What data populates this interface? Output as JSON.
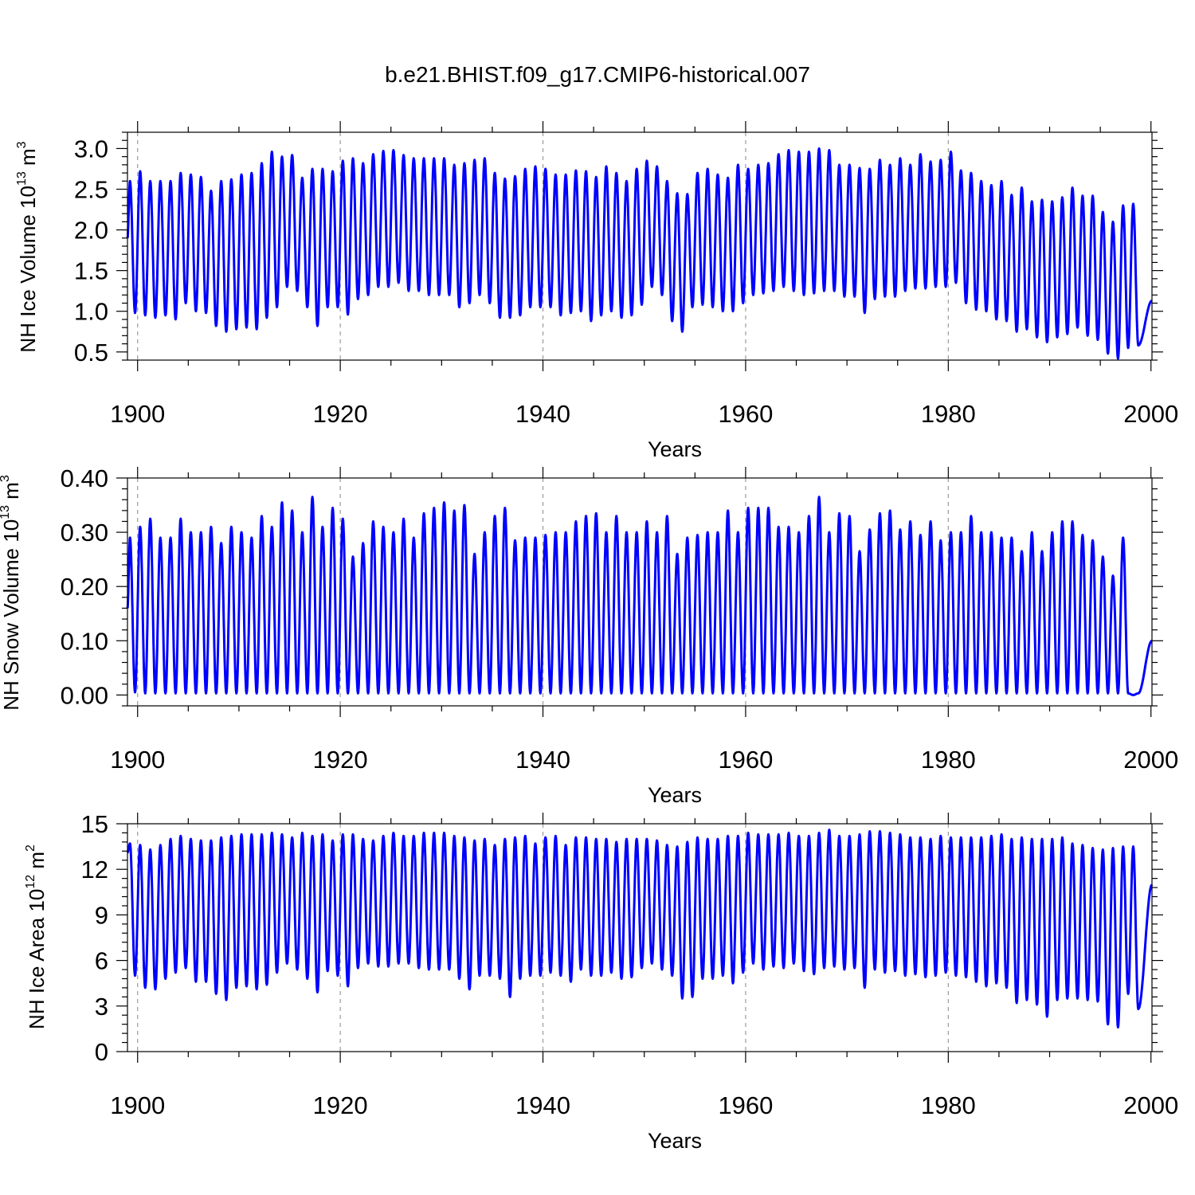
{
  "figure": {
    "title": "b.e21.BHIST.f09_g17.CMIP6-historical.007"
  },
  "chart_data": [
    {
      "type": "line",
      "id": "ice-volume",
      "ylabel": {
        "prefix": "NH Ice Volume 10",
        "exp1": "13",
        "middle": " m",
        "exp2": "3"
      },
      "xlabel": "Years",
      "xlim": [
        1899.0,
        2000.1
      ],
      "ylim": [
        0.4,
        3.2
      ],
      "x_ticks": [
        "1900",
        "1920",
        "1940",
        "1960",
        "1980",
        "2000"
      ],
      "y_ticks": [
        "0.5",
        "1.0",
        "1.5",
        "2.0",
        "2.5",
        "3.0"
      ],
      "grid": "vertical dashed at major x ticks",
      "series": [
        {
          "color": "#0000ff",
          "annual_max": [
            2.6,
            2.72,
            2.6,
            2.6,
            2.6,
            2.7,
            2.68,
            2.65,
            2.48,
            2.6,
            2.62,
            2.68,
            2.7,
            2.82,
            2.96,
            2.9,
            2.92,
            2.64,
            2.75,
            2.75,
            2.72,
            2.85,
            2.88,
            2.82,
            2.93,
            2.97,
            2.98,
            2.92,
            2.88,
            2.88,
            2.88,
            2.88,
            2.8,
            2.82,
            2.86,
            2.88,
            2.7,
            2.63,
            2.66,
            2.75,
            2.78,
            2.75,
            2.68,
            2.68,
            2.73,
            2.72,
            2.65,
            2.78,
            2.7,
            2.6,
            2.75,
            2.85,
            2.78,
            2.6,
            2.45,
            2.44,
            2.7,
            2.75,
            2.68,
            2.64,
            2.8,
            2.75,
            2.8,
            2.82,
            2.93,
            2.98,
            2.96,
            2.96,
            3.0,
            2.98,
            2.8,
            2.8,
            2.76,
            2.75,
            2.86,
            2.8,
            2.88,
            2.8,
            2.93,
            2.84,
            2.86,
            2.96,
            2.73,
            2.7,
            2.6,
            2.55,
            2.6,
            2.43,
            2.52,
            2.35,
            2.37,
            2.35,
            2.4,
            2.52,
            2.42,
            2.42,
            2.22,
            2.1,
            2.3,
            2.32
          ],
          "annual_min": [
            0.98,
            0.95,
            0.92,
            0.95,
            0.9,
            1.1,
            1.0,
            0.98,
            0.82,
            0.75,
            0.78,
            0.8,
            0.78,
            0.92,
            1.05,
            1.3,
            1.25,
            1.05,
            0.82,
            1.05,
            1.05,
            0.96,
            1.15,
            1.2,
            1.3,
            1.3,
            1.35,
            1.25,
            1.25,
            1.2,
            1.2,
            1.2,
            1.05,
            1.1,
            1.2,
            1.1,
            0.92,
            0.92,
            0.95,
            1.05,
            1.05,
            1.05,
            0.95,
            0.98,
            1.0,
            0.88,
            0.95,
            1.0,
            0.92,
            0.95,
            1.08,
            1.3,
            1.2,
            0.88,
            0.75,
            1.05,
            1.08,
            1.05,
            1.0,
            1.0,
            1.1,
            1.2,
            1.22,
            1.25,
            1.3,
            1.25,
            1.2,
            1.22,
            1.25,
            1.25,
            1.18,
            1.18,
            0.98,
            1.15,
            1.18,
            1.18,
            1.25,
            1.28,
            1.28,
            1.3,
            1.3,
            1.35,
            1.1,
            1.02,
            1.0,
            0.9,
            0.88,
            0.75,
            0.78,
            0.68,
            0.62,
            0.68,
            0.72,
            0.8,
            0.7,
            0.65,
            0.48,
            0.42,
            0.55,
            0.58
          ],
          "start": 1.9,
          "end": 1.13
        }
      ]
    },
    {
      "type": "line",
      "id": "snow-volume",
      "ylabel": {
        "prefix": "NH Snow Volume 10",
        "exp1": "13",
        "middle": " m",
        "exp2": "3"
      },
      "xlabel": "Years",
      "xlim": [
        1899.0,
        2000.1
      ],
      "ylim": [
        -0.02,
        0.4
      ],
      "x_ticks": [
        "1900",
        "1920",
        "1940",
        "1960",
        "1980",
        "2000"
      ],
      "y_ticks": [
        "0.00",
        "0.10",
        "0.20",
        "0.30",
        "0.40"
      ],
      "grid": "vertical dashed at major x ticks",
      "series": [
        {
          "color": "#0000ff",
          "annual_max": [
            0.29,
            0.31,
            0.325,
            0.29,
            0.29,
            0.325,
            0.3,
            0.3,
            0.31,
            0.28,
            0.31,
            0.3,
            0.29,
            0.33,
            0.31,
            0.355,
            0.34,
            0.3,
            0.365,
            0.31,
            0.345,
            0.325,
            0.255,
            0.28,
            0.32,
            0.31,
            0.3,
            0.325,
            0.29,
            0.335,
            0.345,
            0.355,
            0.34,
            0.35,
            0.26,
            0.3,
            0.33,
            0.345,
            0.285,
            0.29,
            0.29,
            0.295,
            0.3,
            0.3,
            0.32,
            0.33,
            0.335,
            0.3,
            0.33,
            0.3,
            0.3,
            0.32,
            0.3,
            0.33,
            0.26,
            0.29,
            0.295,
            0.3,
            0.3,
            0.34,
            0.3,
            0.345,
            0.345,
            0.345,
            0.31,
            0.31,
            0.3,
            0.33,
            0.365,
            0.3,
            0.335,
            0.33,
            0.265,
            0.305,
            0.335,
            0.34,
            0.305,
            0.32,
            0.295,
            0.32,
            0.285,
            0.3,
            0.3,
            0.33,
            0.3,
            0.3,
            0.29,
            0.29,
            0.265,
            0.3,
            0.265,
            0.3,
            0.32,
            0.32,
            0.295,
            0.285,
            0.255,
            0.22,
            0.29,
            0.0
          ],
          "annual_min": [
            0.005,
            0.003,
            0.003,
            0.003,
            0.003,
            0.003,
            0.003,
            0.003,
            0.003,
            0.003,
            0.003,
            0.003,
            0.003,
            0.003,
            0.003,
            0.003,
            0.003,
            0.003,
            0.003,
            0.003,
            0.003,
            0.003,
            0.003,
            0.003,
            0.003,
            0.003,
            0.003,
            0.003,
            0.003,
            0.003,
            0.003,
            0.003,
            0.003,
            0.003,
            0.003,
            0.003,
            0.003,
            0.003,
            0.003,
            0.003,
            0.003,
            0.003,
            0.003,
            0.003,
            0.003,
            0.003,
            0.003,
            0.003,
            0.003,
            0.003,
            0.003,
            0.003,
            0.003,
            0.003,
            0.003,
            0.003,
            0.003,
            0.003,
            0.003,
            0.003,
            0.003,
            0.003,
            0.003,
            0.003,
            0.003,
            0.003,
            0.003,
            0.003,
            0.003,
            0.003,
            0.003,
            0.003,
            0.003,
            0.003,
            0.003,
            0.003,
            0.003,
            0.003,
            0.003,
            0.003,
            0.003,
            0.003,
            0.003,
            0.003,
            0.003,
            0.003,
            0.003,
            0.003,
            0.003,
            0.003,
            0.003,
            0.003,
            0.003,
            0.003,
            0.003,
            0.003,
            0.003,
            0.003,
            0.003,
            0.003
          ],
          "start": 0.16,
          "end": 0.1
        }
      ]
    },
    {
      "type": "line",
      "id": "ice-area",
      "ylabel": {
        "prefix": "NH Ice Area 10",
        "exp1": "12",
        "middle": " m",
        "exp2": "2"
      },
      "xlabel": "Years",
      "xlim": [
        1899.0,
        2000.1
      ],
      "ylim": [
        0,
        15
      ],
      "x_ticks": [
        "1900",
        "1920",
        "1940",
        "1960",
        "1980",
        "2000"
      ],
      "y_ticks": [
        "0",
        "3",
        "6",
        "9",
        "12",
        "15"
      ],
      "grid": "vertical dashed at major x ticks",
      "series": [
        {
          "color": "#0000ff",
          "annual_max": [
            13.7,
            13.6,
            13.3,
            13.6,
            14.0,
            14.2,
            14.0,
            13.9,
            13.9,
            14.1,
            14.2,
            14.3,
            14.3,
            14.3,
            14.4,
            14.3,
            14.1,
            14.4,
            14.2,
            14.3,
            13.9,
            14.3,
            14.3,
            14.0,
            13.9,
            14.2,
            14.4,
            14.2,
            14.2,
            14.4,
            14.4,
            14.4,
            14.2,
            14.1,
            13.9,
            14.0,
            13.6,
            14.0,
            14.1,
            14.2,
            13.7,
            14.1,
            14.2,
            13.6,
            14.1,
            14.1,
            14.0,
            14.0,
            13.8,
            14.0,
            14.0,
            14.0,
            13.9,
            13.6,
            13.5,
            13.8,
            14.1,
            14.0,
            14.0,
            14.2,
            14.2,
            14.4,
            14.3,
            14.3,
            14.3,
            14.4,
            14.2,
            14.2,
            14.4,
            14.6,
            14.2,
            14.2,
            14.3,
            14.5,
            14.5,
            14.4,
            14.3,
            14.1,
            14.1,
            14.0,
            14.2,
            14.1,
            14.1,
            14.1,
            14.1,
            14.2,
            14.3,
            14.0,
            14.1,
            14.0,
            14.0,
            14.0,
            14.1,
            13.7,
            13.6,
            13.4,
            13.3,
            13.4,
            13.5,
            13.5
          ],
          "annual_min": [
            5.0,
            4.2,
            4.1,
            4.8,
            5.2,
            5.5,
            4.6,
            4.6,
            3.8,
            3.4,
            4.2,
            4.3,
            4.1,
            4.4,
            5.2,
            5.8,
            5.4,
            4.8,
            3.9,
            5.3,
            5.0,
            4.3,
            5.5,
            5.8,
            5.6,
            5.6,
            5.8,
            5.8,
            5.5,
            5.4,
            5.4,
            5.4,
            4.8,
            4.1,
            5.0,
            5.0,
            4.8,
            3.6,
            4.8,
            5.0,
            5.0,
            5.2,
            5.0,
            4.6,
            5.4,
            5.0,
            5.0,
            5.2,
            4.8,
            4.9,
            5.5,
            5.8,
            5.4,
            5.0,
            3.5,
            3.6,
            4.8,
            4.8,
            5.0,
            4.5,
            5.2,
            5.8,
            5.4,
            5.6,
            5.5,
            5.8,
            5.3,
            5.1,
            5.5,
            5.6,
            5.4,
            5.5,
            4.2,
            5.4,
            5.2,
            5.3,
            5.0,
            5.1,
            4.9,
            5.0,
            5.2,
            5.0,
            4.9,
            4.6,
            4.3,
            4.5,
            4.2,
            3.2,
            3.4,
            3.1,
            2.3,
            3.4,
            3.5,
            3.5,
            3.4,
            3.3,
            1.8,
            1.6,
            3.8,
            2.8
          ],
          "start": 13.1,
          "end": 11.0
        }
      ]
    }
  ]
}
